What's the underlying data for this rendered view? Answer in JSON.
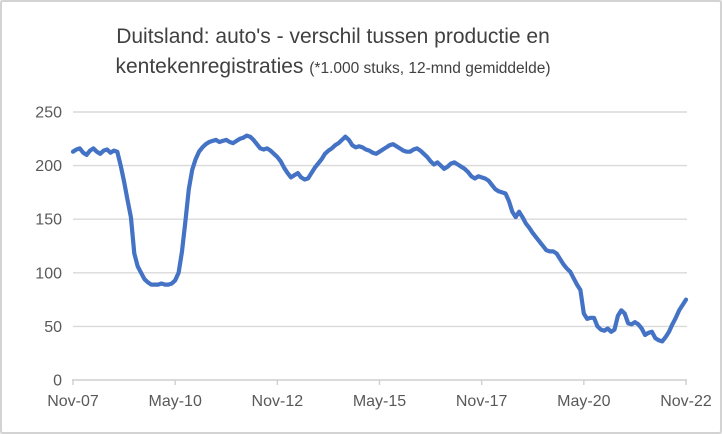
{
  "title": {
    "line1": "Duitsland: auto's - verschil tussen productie en",
    "line2_main": "kentekenregistraties ",
    "line2_sub": "(*1.000 stuks, 12-mnd gemiddelde)"
  },
  "colors": {
    "line": "#4472C4",
    "gridline": "#d9d9d9",
    "axis": "#cfcfcf",
    "tick_label": "#595959",
    "title_text": "#404040",
    "border": "#d3d3d3",
    "background": "#ffffff"
  },
  "chart_data": {
    "type": "line",
    "title": "Duitsland: auto's - verschil tussen productie en kentekenregistraties (*1.000 stuks, 12-mnd gemiddelde)",
    "xlabel": "",
    "ylabel": "",
    "x_unit": "month",
    "x_start": "Nov-07",
    "x_end": "Nov-22",
    "x_tick_labels": [
      "Nov-07",
      "May-10",
      "Nov-12",
      "May-15",
      "Nov-17",
      "May-20",
      "Nov-22"
    ],
    "x_tick_month_indices": [
      0,
      30,
      60,
      90,
      120,
      150,
      180
    ],
    "y_ticks": [
      0,
      50,
      100,
      150,
      200,
      250
    ],
    "ylim": [
      0,
      250
    ],
    "grid": "horizontal",
    "legend": "none",
    "values": [
      213,
      215,
      216,
      212,
      210,
      214,
      216,
      213,
      211,
      214,
      215,
      212,
      214,
      213,
      200,
      185,
      168,
      152,
      118,
      106,
      100,
      94,
      91,
      89,
      89,
      89,
      90,
      89,
      89,
      90,
      93,
      100,
      120,
      148,
      178,
      196,
      206,
      213,
      217,
      220,
      222,
      223,
      224,
      222,
      223,
      224,
      222,
      221,
      223,
      225,
      226,
      228,
      227,
      224,
      220,
      216,
      215,
      216,
      214,
      211,
      208,
      204,
      198,
      193,
      189,
      191,
      193,
      189,
      187,
      188,
      193,
      198,
      202,
      206,
      211,
      214,
      216,
      219,
      221,
      224,
      227,
      224,
      219,
      217,
      218,
      217,
      215,
      214,
      212,
      211,
      213,
      215,
      217,
      219,
      220,
      218,
      216,
      214,
      213,
      213,
      215,
      216,
      214,
      211,
      208,
      204,
      201,
      203,
      200,
      197,
      199,
      202,
      203,
      201,
      199,
      197,
      194,
      190,
      188,
      190,
      189,
      188,
      186,
      182,
      178,
      176,
      175,
      174,
      167,
      157,
      152,
      157,
      152,
      146,
      142,
      137,
      133,
      129,
      125,
      121,
      120,
      120,
      118,
      113,
      108,
      104,
      101,
      95,
      89,
      84,
      62,
      57,
      58,
      58,
      50,
      47,
      46,
      48,
      45,
      47,
      60,
      65,
      62,
      53,
      52,
      54,
      52,
      48,
      42,
      44,
      45,
      39,
      37,
      36,
      40,
      45,
      52,
      58,
      65,
      70,
      75
    ]
  }
}
